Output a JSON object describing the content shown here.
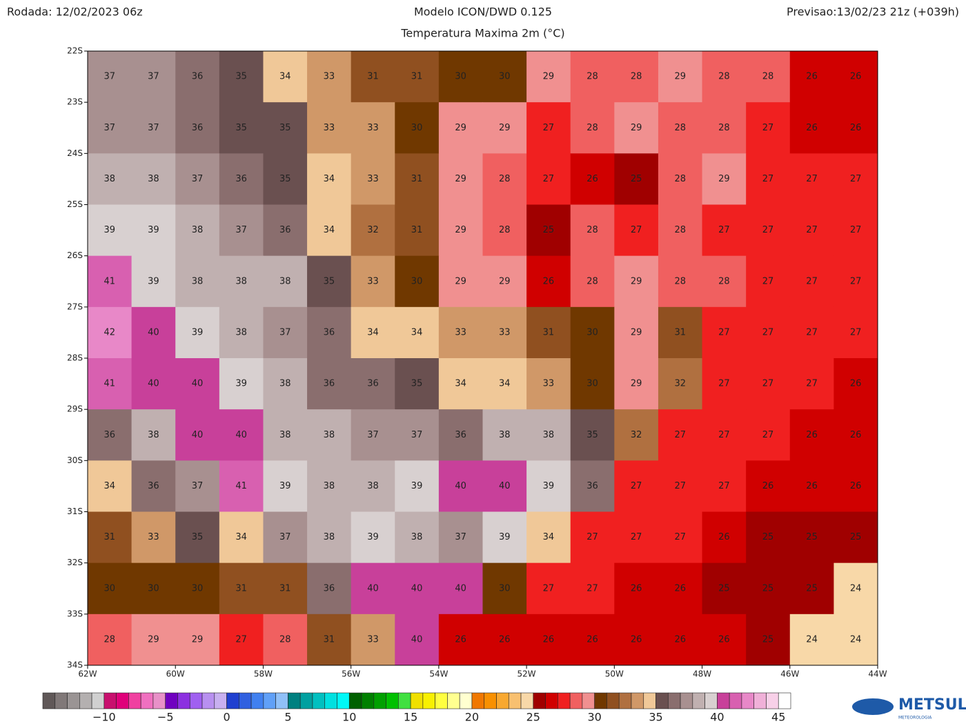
{
  "header": {
    "run": "Rodada: 12/02/2023 06z",
    "model": "Modelo ICON/DWD 0.125",
    "forecast": "Previsao:13/02/23 21z (+039h)",
    "subtitle": "Temperatura Maxima 2m (°C)"
  },
  "map": {
    "xlim": [
      -62,
      -44
    ],
    "ylim": [
      -34,
      -22
    ],
    "xticks": [
      {
        "value": -62,
        "label": "62W"
      },
      {
        "value": -60,
        "label": "60W"
      },
      {
        "value": -58,
        "label": "58W"
      },
      {
        "value": -56,
        "label": "56W"
      },
      {
        "value": -54,
        "label": "54W"
      },
      {
        "value": -52,
        "label": "52W"
      },
      {
        "value": -50,
        "label": "50W"
      },
      {
        "value": -48,
        "label": "48W"
      },
      {
        "value": -46,
        "label": "46W"
      },
      {
        "value": -44,
        "label": "44W"
      }
    ],
    "yticks": [
      {
        "value": -22,
        "label": "22S"
      },
      {
        "value": -23,
        "label": "23S"
      },
      {
        "value": -24,
        "label": "24S"
      },
      {
        "value": -25,
        "label": "25S"
      },
      {
        "value": -26,
        "label": "26S"
      },
      {
        "value": -27,
        "label": "27S"
      },
      {
        "value": -28,
        "label": "28S"
      },
      {
        "value": -29,
        "label": "29S"
      },
      {
        "value": -30,
        "label": "30S"
      },
      {
        "value": -31,
        "label": "31S"
      },
      {
        "value": -32,
        "label": "32S"
      },
      {
        "value": -33,
        "label": "33S"
      },
      {
        "value": -34,
        "label": "34S"
      }
    ],
    "values": [
      [
        37,
        37,
        36,
        35,
        34,
        33,
        31,
        31,
        30,
        30,
        29,
        28,
        28,
        29,
        28,
        28,
        26,
        26
      ],
      [
        37,
        37,
        36,
        35,
        35,
        33,
        33,
        30,
        29,
        29,
        27,
        28,
        29,
        28,
        28,
        27,
        26,
        26
      ],
      [
        38,
        38,
        37,
        36,
        35,
        34,
        33,
        31,
        29,
        28,
        27,
        26,
        25,
        28,
        29,
        27,
        27,
        27
      ],
      [
        39,
        39,
        38,
        37,
        36,
        34,
        32,
        31,
        29,
        28,
        25,
        28,
        27,
        28,
        27,
        27,
        27,
        27
      ],
      [
        41,
        39,
        38,
        38,
        38,
        35,
        33,
        30,
        29,
        29,
        26,
        28,
        29,
        28,
        28,
        27,
        27,
        27
      ],
      [
        42,
        40,
        39,
        38,
        37,
        36,
        34,
        34,
        33,
        33,
        31,
        30,
        29,
        31,
        27,
        27,
        27,
        27
      ],
      [
        41,
        40,
        40,
        39,
        38,
        36,
        36,
        35,
        34,
        34,
        33,
        30,
        29,
        32,
        27,
        27,
        27,
        26
      ],
      [
        36,
        38,
        40,
        40,
        38,
        38,
        37,
        37,
        36,
        38,
        38,
        35,
        32,
        27,
        27,
        27,
        26,
        26
      ],
      [
        34,
        36,
        37,
        41,
        39,
        38,
        38,
        39,
        40,
        40,
        39,
        36,
        27,
        27,
        27,
        26,
        26,
        26
      ],
      [
        31,
        33,
        35,
        34,
        37,
        38,
        39,
        38,
        37,
        39,
        34,
        27,
        27,
        27,
        26,
        25,
        25,
        25
      ],
      [
        30,
        30,
        30,
        31,
        31,
        36,
        40,
        40,
        40,
        30,
        27,
        27,
        26,
        26,
        25,
        25,
        25,
        24
      ],
      [
        28,
        29,
        29,
        27,
        28,
        31,
        33,
        40,
        26,
        26,
        26,
        26,
        26,
        26,
        26,
        25,
        24,
        24
      ]
    ]
  },
  "colorbar": {
    "lim": [
      -15,
      46
    ],
    "ticks": [
      {
        "value": -10,
        "label": "−10"
      },
      {
        "value": -5,
        "label": "−5"
      },
      0,
      5,
      10,
      15,
      20,
      25,
      30,
      35,
      40,
      45
    ],
    "colors": [
      "#605858",
      "#807878",
      "#9a9494",
      "#b4b0b0",
      "#d0d0d0",
      "#c8106e",
      "#e0007a",
      "#f040a0",
      "#f070c0",
      "#e890c8",
      "#7000c0",
      "#8c30e0",
      "#a060f0",
      "#b890f0",
      "#c8b0f0",
      "#2040d0",
      "#3060e0",
      "#4080f0",
      "#60a0f8",
      "#90c0f8",
      "#008080",
      "#00a0a0",
      "#00c0c0",
      "#00e0e0",
      "#00f8f8",
      "#006000",
      "#008000",
      "#00a000",
      "#00c000",
      "#40e040",
      "#f0e000",
      "#f8f000",
      "#ffff40",
      "#ffff90",
      "#ffffd0",
      "#f07800",
      "#f89000",
      "#f8a830",
      "#f8c070",
      "#f8d8a8",
      "#a00000",
      "#d00000",
      "#f02020",
      "#f06060",
      "#f09090",
      "#703800",
      "#905020",
      "#b07040",
      "#d09868",
      "#f0c898",
      "#6a5050",
      "#8a6e6e",
      "#a89090",
      "#c0b0b0",
      "#d8d0d0",
      "#c8409a",
      "#d860b0",
      "#e888c8",
      "#f0b0d8",
      "#f8d0e8",
      "#ffffff"
    ]
  },
  "logo": {
    "name": "METSUL",
    "tagline": "METEOROLOGIA"
  }
}
